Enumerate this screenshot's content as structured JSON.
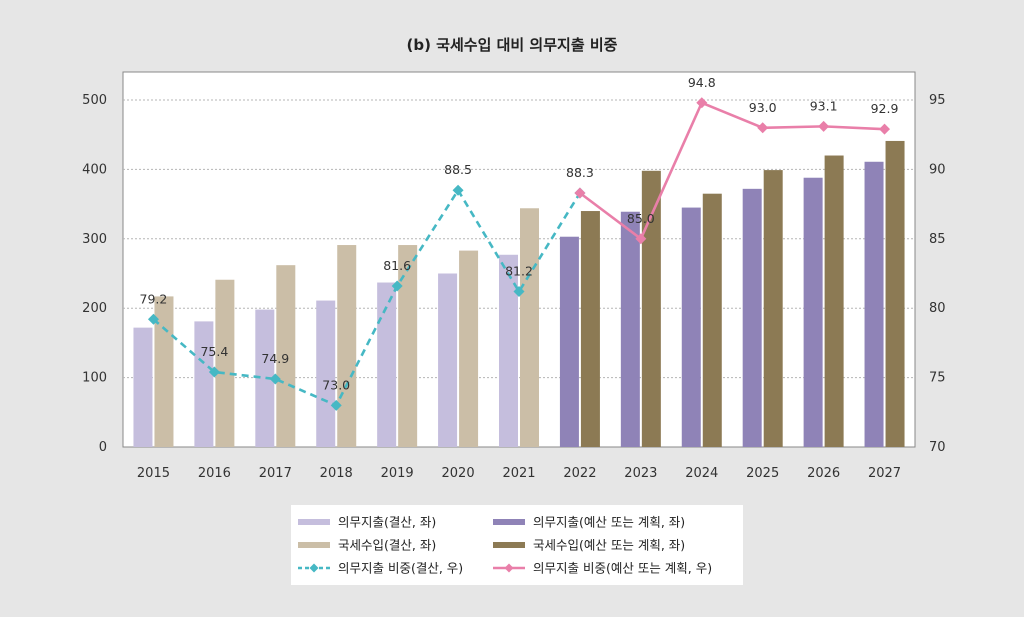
{
  "chart_data": {
    "type": "bar",
    "title": "(b) 국세수입 대비 의무지출 비중",
    "categories": [
      "2015",
      "2016",
      "2017",
      "2018",
      "2019",
      "2020",
      "2021",
      "2022",
      "2023",
      "2024",
      "2025",
      "2026",
      "2027"
    ],
    "y_left": {
      "ylim": [
        0,
        500
      ],
      "ticks": [
        0,
        100,
        200,
        300,
        400,
        500
      ]
    },
    "y_right": {
      "ylim": [
        70,
        95
      ],
      "ticks": [
        70,
        75,
        80,
        85,
        90,
        95
      ]
    },
    "grid": true,
    "legend_position": "bottom",
    "series": [
      {
        "name": "의무지출(결산, 좌)",
        "kind": "bar",
        "axis": "left",
        "group": 0,
        "color": "#c5bedd",
        "values": [
          172,
          181,
          198,
          211,
          237,
          250,
          277,
          null,
          null,
          null,
          null,
          null,
          null
        ]
      },
      {
        "name": "국세수입(결산, 좌)",
        "kind": "bar",
        "axis": "left",
        "group": 1,
        "color": "#cbbea7",
        "values": [
          217,
          241,
          262,
          291,
          291,
          283,
          344,
          null,
          null,
          null,
          null,
          null,
          null
        ]
      },
      {
        "name": "의무지출(예산 또는 계획, 좌)",
        "kind": "bar",
        "axis": "left",
        "group": 0,
        "color": "#8f83b7",
        "values": [
          null,
          null,
          null,
          null,
          null,
          null,
          null,
          303,
          339,
          345,
          372,
          388,
          411
        ]
      },
      {
        "name": "국세수입(예산 또는 계획, 좌)",
        "kind": "bar",
        "axis": "left",
        "group": 1,
        "color": "#8c7a54",
        "values": [
          null,
          null,
          null,
          null,
          null,
          null,
          null,
          340,
          398,
          365,
          399,
          420,
          441
        ]
      },
      {
        "name": "의무지출 비중(결산, 우)",
        "kind": "line",
        "axis": "right",
        "color": "#46b8c4",
        "dashed": true,
        "values": [
          79.2,
          75.4,
          74.9,
          73.0,
          81.6,
          88.5,
          81.2,
          88.3,
          null,
          null,
          null,
          null,
          null
        ],
        "labels": [
          "79.2",
          "75.4",
          "74.9",
          "73.0",
          "81.6",
          "88.5",
          "81.2",
          "88.3",
          null,
          null,
          null,
          null,
          null
        ]
      },
      {
        "name": "의무지출 비중(예산 또는 계획, 우)",
        "kind": "line",
        "axis": "right",
        "color": "#e97fa9",
        "dashed": false,
        "values": [
          null,
          null,
          null,
          null,
          null,
          null,
          null,
          88.3,
          85.0,
          94.8,
          93.0,
          93.1,
          92.9
        ],
        "labels": [
          null,
          null,
          null,
          null,
          null,
          null,
          null,
          null,
          "85.0",
          "94.8",
          "93.0",
          "93.1",
          "92.9"
        ]
      }
    ]
  }
}
